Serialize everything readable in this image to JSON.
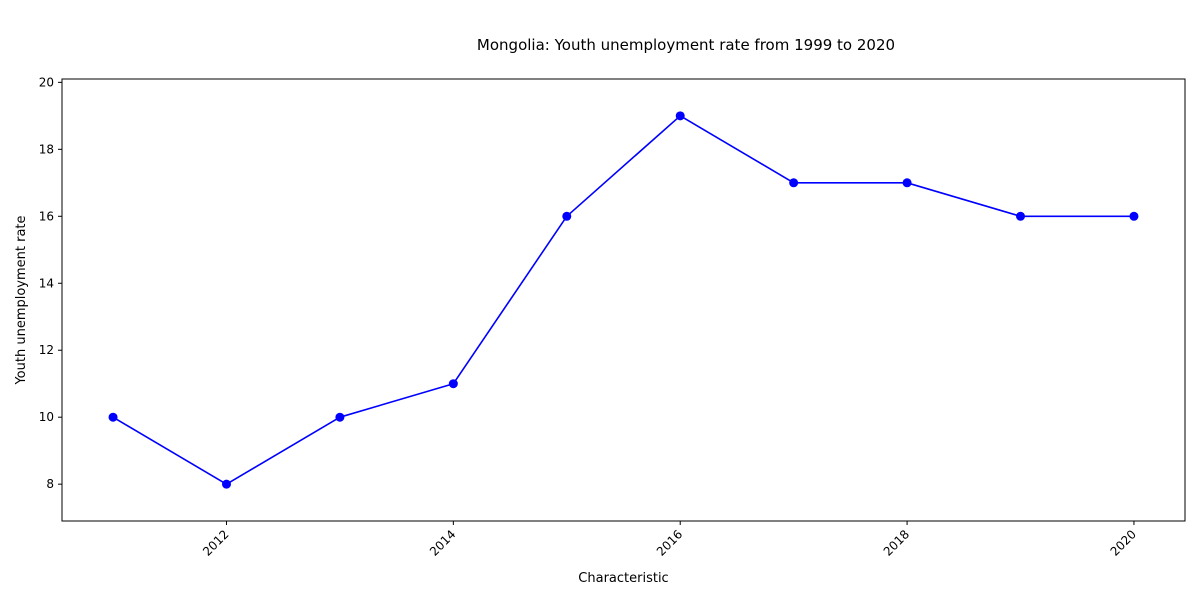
{
  "chart_data": {
    "type": "line",
    "title": "Mongolia: Youth unemployment rate from 1999 to 2020",
    "xlabel": "Characteristic",
    "ylabel": "Youth unemployment rate",
    "x": [
      2011,
      2012,
      2013,
      2014,
      2015,
      2016,
      2017,
      2018,
      2019,
      2020
    ],
    "series": [
      {
        "values": [
          10,
          8,
          10,
          11,
          16,
          19,
          17,
          17,
          16,
          16
        ]
      }
    ],
    "xlim": [
      2010.55,
      2020.45
    ],
    "ylim": [
      6.9,
      20.1
    ],
    "xticks": [
      2012,
      2014,
      2016,
      2018,
      2020
    ],
    "yticks": [
      8,
      10,
      12,
      14,
      16,
      18,
      20
    ],
    "grid": false,
    "colors": {
      "line": "#0000ff",
      "marker": "#0000ff",
      "axis": "#000000"
    }
  }
}
